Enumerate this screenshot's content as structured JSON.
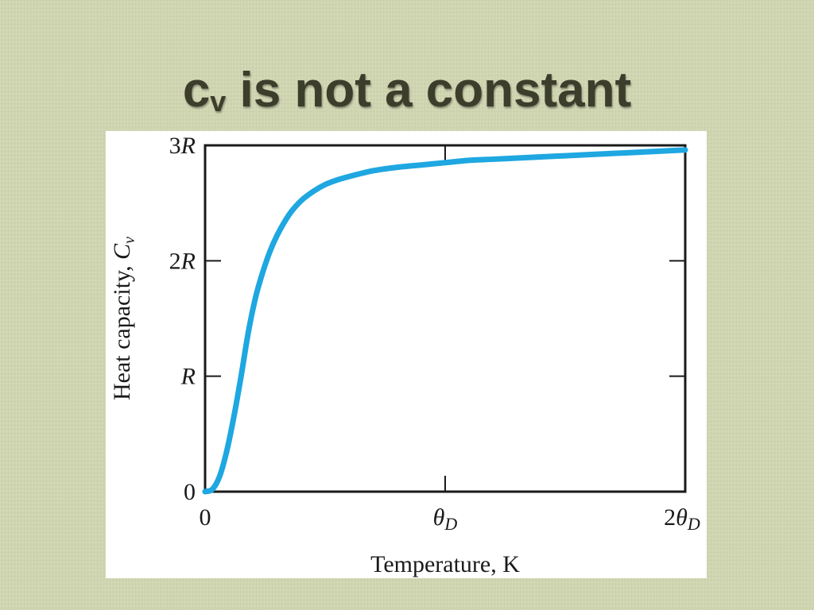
{
  "slide": {
    "title_main": "c",
    "title_subscript": "v",
    "title_rest": " is not a constant"
  },
  "chart_data": {
    "type": "line",
    "xlabel": "Temperature, K",
    "ylabel_text": "Heat capacity, ",
    "ylabel_symbol": "C",
    "ylabel_subscript": "v",
    "x_ticks": [
      {
        "value": 0,
        "label": "0",
        "symbol": "",
        "subscript": ""
      },
      {
        "value": 1,
        "label": "",
        "symbol": "θ",
        "subscript": "D"
      },
      {
        "value": 2,
        "label": "2",
        "symbol": "θ",
        "subscript": "D"
      }
    ],
    "y_ticks": [
      {
        "value": 0,
        "label": "0",
        "symbol": ""
      },
      {
        "value": 1,
        "label": "",
        "symbol": "R"
      },
      {
        "value": 2,
        "label": "2",
        "symbol": "R"
      },
      {
        "value": 3,
        "label": "3",
        "symbol": "R"
      }
    ],
    "xlim": [
      0,
      2
    ],
    "ylim": [
      0,
      3
    ],
    "x_unit": "θD",
    "y_unit": "R",
    "series": [
      {
        "color": "#1ea7e1",
        "x": [
          0,
          0.03,
          0.06,
          0.09,
          0.12,
          0.15,
          0.18,
          0.21,
          0.24,
          0.27,
          0.3,
          0.35,
          0.4,
          0.45,
          0.5,
          0.55,
          0.6,
          0.7,
          0.8,
          0.9,
          1.0,
          1.1,
          1.2,
          1.3,
          1.4,
          1.5,
          1.6,
          1.7,
          1.8,
          1.9,
          2.0
        ],
        "y": [
          0,
          0.02,
          0.13,
          0.35,
          0.65,
          1.0,
          1.38,
          1.68,
          1.9,
          2.08,
          2.22,
          2.4,
          2.52,
          2.6,
          2.66,
          2.7,
          2.73,
          2.78,
          2.81,
          2.83,
          2.85,
          2.87,
          2.88,
          2.89,
          2.9,
          2.91,
          2.92,
          2.93,
          2.94,
          2.95,
          2.96
        ]
      }
    ]
  }
}
